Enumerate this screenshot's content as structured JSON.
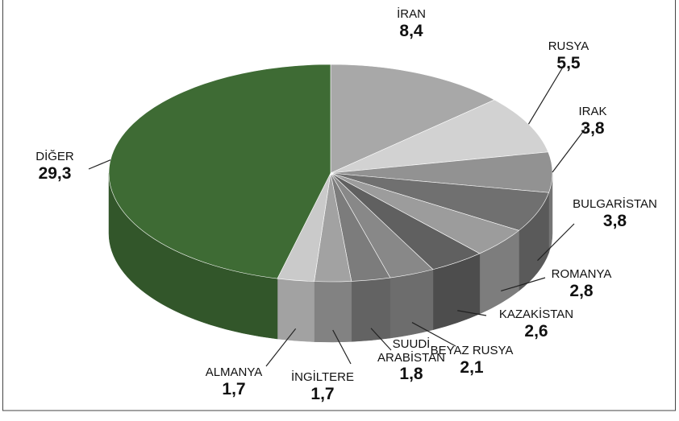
{
  "chart_data": {
    "type": "pie3d",
    "categories": [
      "İRAN",
      "RUSYA",
      "IRAK",
      "BULGARİSTAN",
      "ROMANYA",
      "KAZAKİSTAN",
      "BEYAZ RUSYA",
      "SUUDİ ARABİSTAN",
      "İNGİLTERE",
      "ALMANYA",
      "DİĞER"
    ],
    "values": [
      8.4,
      5.5,
      3.8,
      3.8,
      2.8,
      2.6,
      2.1,
      1.8,
      1.7,
      1.7,
      29.3
    ],
    "value_labels": [
      "8,4",
      "5,5",
      "3,8",
      "3,8",
      "2,8",
      "2,6",
      "2,1",
      "1,8",
      "1,7",
      "1,7",
      "29,3"
    ],
    "colors": [
      "#a8a8a8",
      "#d2d2d2",
      "#929292",
      "#707070",
      "#9c9c9c",
      "#606060",
      "#888888",
      "#7c7c7c",
      "#a2a2a2",
      "#cacaca",
      "#3e6b34"
    ]
  }
}
